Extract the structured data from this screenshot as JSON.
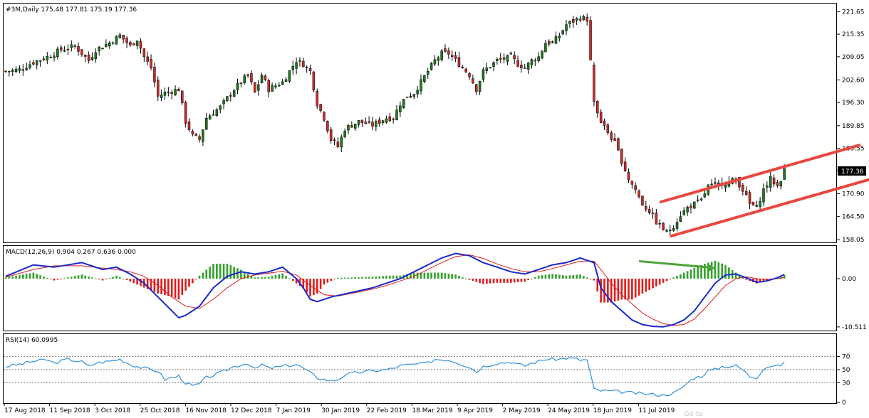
{
  "price_header": "#3M,Daily  175.48 177.81 175.19 177.36",
  "macd_header": "MACD(12,26,9) 0.904 0.267 0.636 0.000",
  "rsi_header": "RSI(14) 60.0995",
  "current_price_label": "177.36",
  "watermark": "Go to",
  "colors": {
    "bull_candle": "#1f7a1f",
    "bear_candle": "#cc2b2b",
    "macd_line": "#1a27c9",
    "signal_line": "#e01b1b",
    "histogram_positive": "#33a02c",
    "histogram_negative": "#e01b1b",
    "rsi_line": "#2f8fd8",
    "channel_lines": "#e8473f",
    "divergence_arrow": "#4aa336",
    "grid_border": "#000000"
  },
  "chart_data": [
    {
      "type": "candlestick",
      "title": "#3M,Daily",
      "y_ticks": [
        "221.65",
        "215.35",
        "209.05",
        "202.60",
        "196.30",
        "189.85",
        "183.55",
        "177.36",
        "170.90",
        "164.50",
        "158.05"
      ],
      "ylim": [
        157.5,
        222.5
      ],
      "x_ticks": [
        "17 Aug 2018",
        "11 Sep 2018",
        "3 Oct 2018",
        "25 Oct 2018",
        "16 Nov 2018",
        "12 Dec 2018",
        "7 Jan 2019",
        "30 Jan 2019",
        "22 Feb 2019",
        "18 Mar 2019",
        "9 Apr 2019",
        "2 May 2019",
        "24 May 2019",
        "18 Jun 2019",
        "11 Jul 2019"
      ],
      "close_path": [
        [
          0,
          205
        ],
        [
          4,
          205.5
        ],
        [
          8,
          207.5
        ],
        [
          12,
          209
        ],
        [
          16,
          211
        ],
        [
          20,
          212
        ],
        [
          22,
          210
        ],
        [
          24,
          208
        ],
        [
          26,
          211
        ],
        [
          30,
          213
        ],
        [
          33,
          215
        ],
        [
          36,
          212
        ],
        [
          38,
          214
        ],
        [
          40,
          209
        ],
        [
          42,
          206
        ],
        [
          44,
          198
        ],
        [
          46,
          199
        ],
        [
          50,
          200
        ],
        [
          52,
          191
        ],
        [
          54,
          187
        ],
        [
          56,
          186
        ],
        [
          58,
          192
        ],
        [
          62,
          195
        ],
        [
          66,
          200
        ],
        [
          70,
          204
        ],
        [
          72,
          199
        ],
        [
          74,
          204
        ],
        [
          76,
          200
        ],
        [
          80,
          202
        ],
        [
          84,
          208
        ],
        [
          86,
          207
        ],
        [
          88,
          205
        ],
        [
          90,
          196
        ],
        [
          92,
          192
        ],
        [
          94,
          186
        ],
        [
          96,
          184
        ],
        [
          98,
          189
        ],
        [
          102,
          191
        ],
        [
          106,
          190
        ],
        [
          108,
          191
        ],
        [
          110,
          192
        ],
        [
          112,
          192
        ],
        [
          114,
          196
        ],
        [
          116,
          198
        ],
        [
          118,
          199
        ],
        [
          120,
          202
        ],
        [
          122,
          205
        ],
        [
          124,
          208
        ],
        [
          126,
          210
        ],
        [
          128,
          210
        ],
        [
          130,
          208
        ],
        [
          132,
          206
        ],
        [
          134,
          204
        ],
        [
          136,
          200
        ],
        [
          138,
          205
        ],
        [
          142,
          208
        ],
        [
          146,
          209
        ],
        [
          148,
          207
        ],
        [
          150,
          206
        ],
        [
          152,
          208
        ],
        [
          154,
          209
        ],
        [
          156,
          213
        ],
        [
          158,
          213
        ],
        [
          160,
          215
        ],
        [
          162,
          218
        ],
        [
          164,
          219
        ],
        [
          166,
          220
        ],
        [
          168,
          219.5
        ],
        [
          170,
          196
        ],
        [
          172,
          191
        ],
        [
          174,
          188
        ],
        [
          176,
          185
        ],
        [
          178,
          180
        ],
        [
          180,
          175
        ],
        [
          182,
          172
        ],
        [
          184,
          168
        ],
        [
          186,
          166
        ],
        [
          188,
          163
        ],
        [
          190,
          161
        ],
        [
          191,
          160
        ],
        [
          193,
          162
        ],
        [
          195,
          165
        ],
        [
          197,
          167
        ],
        [
          199,
          168
        ],
        [
          201,
          169
        ],
        [
          203,
          173
        ],
        [
          205,
          173
        ],
        [
          207,
          174
        ],
        [
          209,
          174
        ],
        [
          211,
          175
        ],
        [
          213,
          172
        ],
        [
          215,
          168
        ],
        [
          217,
          167
        ],
        [
          219,
          172
        ],
        [
          221,
          175
        ],
        [
          223,
          173
        ],
        [
          224,
          175
        ],
        [
          225,
          177.36
        ]
      ],
      "channel_upper": [
        [
          189,
          168.5
        ],
        [
          247,
          184.5
        ]
      ],
      "channel_lower": [
        [
          192,
          159.0
        ],
        [
          252,
          175.5
        ]
      ],
      "candles_count": 226
    },
    {
      "type": "macd",
      "title": "MACD(12,26,9)",
      "values": {
        "macd": 0.904,
        "signal": 0.267,
        "histogram": 0.636,
        "extra": 0.0
      },
      "y_ticks": [
        "0.00",
        "-10.511"
      ],
      "ylim": [
        -11,
        6.5
      ],
      "macd_path": [
        [
          0,
          0.5
        ],
        [
          8,
          3
        ],
        [
          14,
          2.5
        ],
        [
          22,
          3.5
        ],
        [
          28,
          2
        ],
        [
          32,
          2.5
        ],
        [
          36,
          1
        ],
        [
          40,
          -1
        ],
        [
          44,
          -4
        ],
        [
          48,
          -7
        ],
        [
          50,
          -8.5
        ],
        [
          52,
          -8
        ],
        [
          56,
          -6
        ],
        [
          60,
          -2
        ],
        [
          64,
          0.5
        ],
        [
          68,
          1.5
        ],
        [
          72,
          1
        ],
        [
          76,
          1.5
        ],
        [
          80,
          2.5
        ],
        [
          84,
          0
        ],
        [
          86,
          -2
        ],
        [
          88,
          -4.5
        ],
        [
          90,
          -5
        ],
        [
          94,
          -4
        ],
        [
          100,
          -3
        ],
        [
          106,
          -2
        ],
        [
          110,
          -1
        ],
        [
          114,
          0
        ],
        [
          118,
          1.5
        ],
        [
          122,
          3
        ],
        [
          126,
          4.5
        ],
        [
          130,
          5.5
        ],
        [
          134,
          5
        ],
        [
          138,
          3.5
        ],
        [
          142,
          2.5
        ],
        [
          146,
          1.5
        ],
        [
          150,
          1
        ],
        [
          154,
          2
        ],
        [
          158,
          3
        ],
        [
          162,
          3.5
        ],
        [
          166,
          4.5
        ],
        [
          170,
          3.5
        ],
        [
          172,
          -2
        ],
        [
          175,
          -5
        ],
        [
          178,
          -7
        ],
        [
          181,
          -9
        ],
        [
          184,
          -10
        ],
        [
          187,
          -10.4
        ],
        [
          190,
          -10.5
        ],
        [
          193,
          -10
        ],
        [
          196,
          -9
        ],
        [
          199,
          -7
        ],
        [
          202,
          -4
        ],
        [
          205,
          -1
        ],
        [
          208,
          0.8
        ],
        [
          211,
          1
        ],
        [
          214,
          0.2
        ],
        [
          217,
          -0.8
        ],
        [
          220,
          -0.5
        ],
        [
          223,
          0.2
        ],
        [
          225,
          0.904
        ]
      ],
      "signal_path": [
        [
          0,
          0.3
        ],
        [
          8,
          2
        ],
        [
          14,
          2.8
        ],
        [
          22,
          2.8
        ],
        [
          28,
          2.3
        ],
        [
          32,
          2
        ],
        [
          36,
          1.5
        ],
        [
          40,
          0.5
        ],
        [
          44,
          -1.5
        ],
        [
          48,
          -4
        ],
        [
          52,
          -6
        ],
        [
          56,
          -6.5
        ],
        [
          60,
          -4.5
        ],
        [
          64,
          -2
        ],
        [
          68,
          0
        ],
        [
          72,
          0.8
        ],
        [
          76,
          1.2
        ],
        [
          80,
          1.6
        ],
        [
          84,
          0.8
        ],
        [
          88,
          -1.5
        ],
        [
          92,
          -3.5
        ],
        [
          96,
          -3.8
        ],
        [
          100,
          -3.2
        ],
        [
          106,
          -2.3
        ],
        [
          110,
          -1.5
        ],
        [
          114,
          -0.5
        ],
        [
          118,
          0.5
        ],
        [
          122,
          2
        ],
        [
          126,
          3.5
        ],
        [
          130,
          4.8
        ],
        [
          134,
          5.2
        ],
        [
          138,
          4.4
        ],
        [
          142,
          3.2
        ],
        [
          146,
          2.2
        ],
        [
          150,
          1.5
        ],
        [
          154,
          1.5
        ],
        [
          158,
          2.2
        ],
        [
          162,
          3
        ],
        [
          166,
          3.8
        ],
        [
          170,
          3.8
        ],
        [
          172,
          2
        ],
        [
          175,
          -1
        ],
        [
          178,
          -3.5
        ],
        [
          181,
          -5.5
        ],
        [
          184,
          -7.5
        ],
        [
          187,
          -8.8
        ],
        [
          190,
          -9.8
        ],
        [
          193,
          -10.2
        ],
        [
          196,
          -10
        ],
        [
          199,
          -8.8
        ],
        [
          202,
          -6.5
        ],
        [
          205,
          -4
        ],
        [
          208,
          -1.5
        ],
        [
          211,
          0
        ],
        [
          214,
          0.4
        ],
        [
          217,
          0
        ],
        [
          220,
          -0.2
        ],
        [
          223,
          0
        ],
        [
          225,
          0.267
        ]
      ],
      "divergence_arrow": [
        [
          183,
          3.8
        ],
        [
          205,
          2.3
        ]
      ]
    },
    {
      "type": "line",
      "title": "RSI(14)",
      "value": 60.0995,
      "y_ticks": [
        "70",
        "50",
        "30",
        "0"
      ],
      "ylim": [
        0,
        100
      ],
      "levels": [
        70,
        50,
        30
      ],
      "rsi_path": [
        [
          0,
          55
        ],
        [
          4,
          58
        ],
        [
          8,
          63
        ],
        [
          12,
          65
        ],
        [
          14,
          60
        ],
        [
          18,
          66
        ],
        [
          22,
          62
        ],
        [
          24,
          55
        ],
        [
          26,
          60
        ],
        [
          30,
          63
        ],
        [
          33,
          66
        ],
        [
          36,
          58
        ],
        [
          40,
          52
        ],
        [
          44,
          48
        ],
        [
          46,
          35
        ],
        [
          50,
          40
        ],
        [
          52,
          30
        ],
        [
          54,
          25
        ],
        [
          56,
          28
        ],
        [
          58,
          38
        ],
        [
          62,
          45
        ],
        [
          66,
          55
        ],
        [
          70,
          60
        ],
        [
          72,
          50
        ],
        [
          74,
          58
        ],
        [
          76,
          52
        ],
        [
          80,
          55
        ],
        [
          84,
          58
        ],
        [
          86,
          52
        ],
        [
          88,
          45
        ],
        [
          90,
          38
        ],
        [
          92,
          35
        ],
        [
          94,
          33
        ],
        [
          96,
          35
        ],
        [
          98,
          42
        ],
        [
          102,
          46
        ],
        [
          106,
          48
        ],
        [
          110,
          50
        ],
        [
          112,
          52
        ],
        [
          114,
          56
        ],
        [
          118,
          58
        ],
        [
          122,
          60
        ],
        [
          124,
          66
        ],
        [
          128,
          65
        ],
        [
          130,
          62
        ],
        [
          132,
          58
        ],
        [
          134,
          54
        ],
        [
          136,
          47
        ],
        [
          138,
          55
        ],
        [
          142,
          60
        ],
        [
          146,
          62
        ],
        [
          148,
          58
        ],
        [
          150,
          56
        ],
        [
          152,
          60
        ],
        [
          154,
          63
        ],
        [
          156,
          66
        ],
        [
          160,
          66
        ],
        [
          162,
          68
        ],
        [
          164,
          67
        ],
        [
          166,
          65
        ],
        [
          168,
          65
        ],
        [
          170,
          20
        ],
        [
          172,
          18
        ],
        [
          176,
          17
        ],
        [
          180,
          15
        ],
        [
          184,
          13
        ],
        [
          188,
          12
        ],
        [
          190,
          11
        ],
        [
          193,
          14
        ],
        [
          195,
          20
        ],
        [
          197,
          30
        ],
        [
          199,
          38
        ],
        [
          201,
          40
        ],
        [
          203,
          48
        ],
        [
          205,
          50
        ],
        [
          207,
          55
        ],
        [
          209,
          55
        ],
        [
          211,
          56
        ],
        [
          213,
          50
        ],
        [
          215,
          40
        ],
        [
          217,
          38
        ],
        [
          219,
          52
        ],
        [
          221,
          56
        ],
        [
          223,
          55
        ],
        [
          225,
          60.1
        ]
      ]
    }
  ]
}
